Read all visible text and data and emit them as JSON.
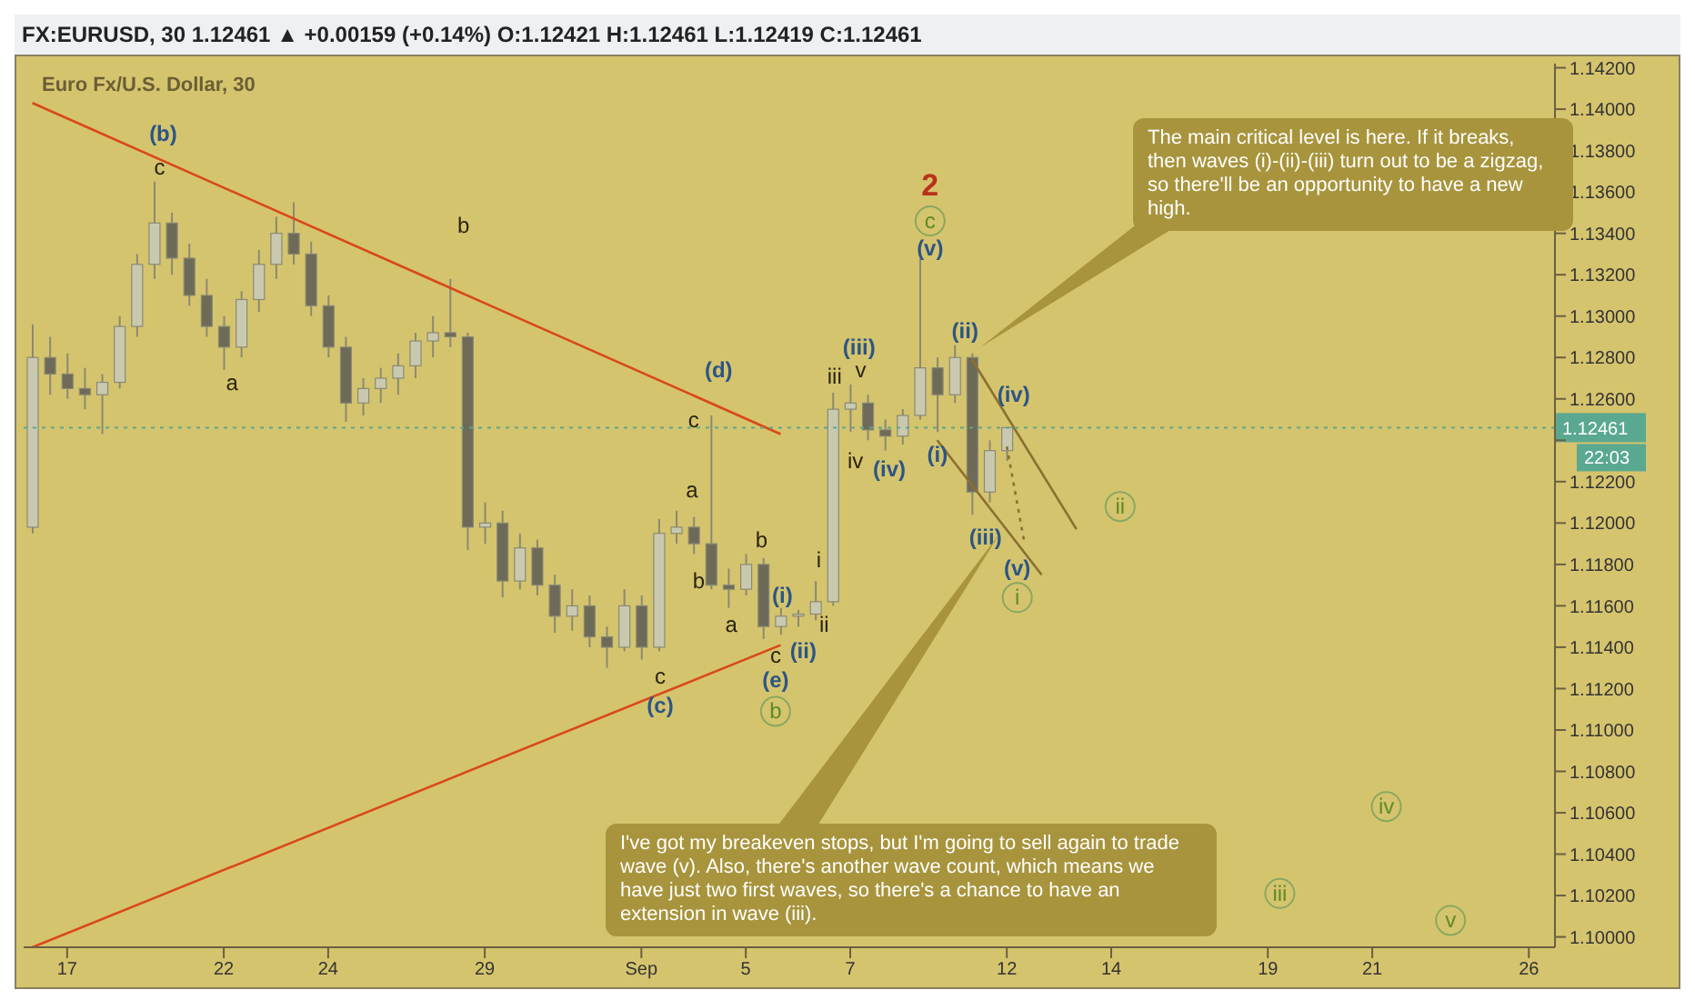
{
  "chart_data": {
    "type": "candlestick",
    "title": "Euro Fx/U.S. Dollar, 30",
    "subtitle": "FX:EURUSD, 30  1.12461 ▲ +0.00159 (+0.14%)  O:1.12421 H:1.12461 L:1.12419 C:1.12461",
    "color": "#8a8a72",
    "categories": [
      null,
      null,
      "17",
      null,
      null,
      null,
      null,
      null,
      null,
      null,
      null,
      "22",
      null,
      null,
      null,
      null,
      null,
      "24",
      null,
      null,
      null,
      null,
      null,
      null,
      null,
      null,
      "29",
      null,
      null,
      null,
      null,
      null,
      null,
      null,
      null,
      "Sep",
      null,
      null,
      null,
      null,
      null,
      "5",
      null,
      null,
      null,
      null,
      null,
      "7",
      null,
      null,
      null,
      null,
      null,
      null,
      null,
      null,
      "12",
      null,
      null,
      null,
      null,
      null,
      "14",
      null,
      null,
      null,
      null,
      null,
      null,
      null,
      null,
      "19",
      null,
      null,
      null,
      null,
      null,
      "21",
      null,
      null,
      null,
      null,
      null,
      null,
      null,
      null,
      "26",
      null
    ],
    "ohlc": [
      [
        1.1198,
        1.1296,
        1.1195,
        1.128
      ],
      [
        1.128,
        1.129,
        1.1262,
        1.1272
      ],
      [
        1.1272,
        1.1282,
        1.126,
        1.1265
      ],
      [
        1.1265,
        1.1275,
        1.1255,
        1.1262
      ],
      [
        1.1262,
        1.1272,
        1.1243,
        1.1268
      ],
      [
        1.1268,
        1.13,
        1.1265,
        1.1295
      ],
      [
        1.1295,
        1.133,
        1.129,
        1.1325
      ],
      [
        1.1325,
        1.1365,
        1.1318,
        1.1345
      ],
      [
        1.1345,
        1.135,
        1.132,
        1.1328
      ],
      [
        1.1328,
        1.1335,
        1.1305,
        1.131
      ],
      [
        1.131,
        1.1318,
        1.129,
        1.1295
      ],
      [
        1.1295,
        1.13,
        1.1274,
        1.1285
      ],
      [
        1.1285,
        1.1312,
        1.128,
        1.1308
      ],
      [
        1.1308,
        1.1332,
        1.1302,
        1.1325
      ],
      [
        1.1325,
        1.1348,
        1.1318,
        1.134
      ],
      [
        1.134,
        1.1355,
        1.1325,
        1.133
      ],
      [
        1.133,
        1.1336,
        1.13,
        1.1305
      ],
      [
        1.1305,
        1.131,
        1.128,
        1.1285
      ],
      [
        1.1285,
        1.129,
        1.1249,
        1.1258
      ],
      [
        1.1258,
        1.127,
        1.1252,
        1.1265
      ],
      [
        1.1265,
        1.1275,
        1.1258,
        1.127
      ],
      [
        1.127,
        1.1282,
        1.1262,
        1.1276
      ],
      [
        1.1276,
        1.1292,
        1.127,
        1.1288
      ],
      [
        1.1288,
        1.13,
        1.128,
        1.1292
      ],
      [
        1.1292,
        1.1318,
        1.1285,
        1.129
      ],
      [
        1.129,
        1.1292,
        1.1187,
        1.1198
      ],
      [
        1.1198,
        1.121,
        1.119,
        1.12
      ],
      [
        1.12,
        1.1206,
        1.1164,
        1.1172
      ],
      [
        1.1172,
        1.1195,
        1.1168,
        1.1188
      ],
      [
        1.1188,
        1.1192,
        1.1165,
        1.117
      ],
      [
        1.117,
        1.1175,
        1.1147,
        1.1155
      ],
      [
        1.1155,
        1.1168,
        1.1148,
        1.116
      ],
      [
        1.116,
        1.1165,
        1.114,
        1.1145
      ],
      [
        1.1145,
        1.115,
        1.113,
        1.114
      ],
      [
        1.114,
        1.1168,
        1.1138,
        1.116
      ],
      [
        1.116,
        1.1165,
        1.1134,
        1.114
      ],
      [
        1.114,
        1.1202,
        1.1138,
        1.1195
      ],
      [
        1.1195,
        1.1206,
        1.119,
        1.1198
      ],
      [
        1.1198,
        1.1203,
        1.1185,
        1.119
      ],
      [
        1.119,
        1.1252,
        1.1168,
        1.117
      ],
      [
        1.117,
        1.1178,
        1.1159,
        1.1168
      ],
      [
        1.1168,
        1.1185,
        1.1165,
        1.118
      ],
      [
        1.118,
        1.1183,
        1.1144,
        1.115
      ],
      [
        1.115,
        1.1159,
        1.1146,
        1.1155
      ],
      [
        1.1155,
        1.1158,
        1.115,
        1.1156
      ],
      [
        1.1156,
        1.1172,
        1.1153,
        1.1162
      ],
      [
        1.1162,
        1.1263,
        1.116,
        1.1255
      ],
      [
        1.1255,
        1.1267,
        1.1244,
        1.1258
      ],
      [
        1.1258,
        1.1262,
        1.124,
        1.1245
      ],
      [
        1.1245,
        1.125,
        1.1235,
        1.1242
      ],
      [
        1.1242,
        1.1255,
        1.1238,
        1.1252
      ],
      [
        1.1252,
        1.1328,
        1.125,
        1.1275
      ],
      [
        1.1275,
        1.128,
        1.1244,
        1.1262
      ],
      [
        1.1262,
        1.1286,
        1.1258,
        1.128
      ],
      [
        1.128,
        1.1282,
        1.1204,
        1.1215
      ],
      [
        1.1215,
        1.124,
        1.121,
        1.1235
      ],
      [
        1.1235,
        1.12461,
        1.123,
        1.12461
      ],
      null,
      null,
      null,
      null,
      null,
      null,
      null,
      null,
      null,
      null,
      null,
      null,
      null,
      null,
      null,
      null,
      null,
      null,
      null,
      null,
      null,
      null,
      null,
      null,
      null,
      null,
      null,
      null,
      null,
      null,
      null
    ],
    "series": [
      {
        "type": "line",
        "color": "#d9481a",
        "values": [
          1.1403,
          null,
          null,
          null,
          null,
          null,
          null,
          null,
          null,
          null,
          null,
          null,
          null,
          null,
          null,
          null,
          null,
          null,
          null,
          null,
          null,
          null,
          null,
          null,
          null,
          null,
          null,
          null,
          null,
          null,
          null,
          null,
          null,
          null,
          null,
          null,
          null,
          null,
          null,
          null,
          null,
          null,
          null,
          1.1243,
          null,
          null,
          null,
          null,
          null,
          null,
          null,
          null,
          null,
          null,
          null,
          null,
          null,
          null,
          null,
          null,
          null,
          null,
          null,
          null,
          null,
          null,
          null,
          null,
          null,
          null,
          null,
          null,
          null,
          null,
          null,
          null,
          null,
          null,
          null,
          null,
          null,
          null,
          null,
          null,
          null,
          null,
          null,
          null
        ]
      },
      {
        "type": "line",
        "color": "#d9481a",
        "values": [
          1.0995,
          null,
          null,
          null,
          null,
          null,
          null,
          null,
          null,
          null,
          null,
          null,
          null,
          null,
          null,
          null,
          null,
          null,
          null,
          null,
          null,
          null,
          null,
          null,
          null,
          null,
          null,
          null,
          null,
          null,
          null,
          null,
          null,
          null,
          null,
          null,
          null,
          null,
          null,
          null,
          null,
          null,
          null,
          1.1141,
          null,
          null,
          null,
          null,
          null,
          null,
          null,
          null,
          null,
          null,
          null,
          null,
          null,
          null,
          null,
          null,
          null,
          null,
          null,
          null,
          null,
          null,
          null,
          null,
          null,
          null,
          null,
          null,
          null,
          null,
          null,
          null,
          null,
          null,
          null,
          null,
          null,
          null,
          null,
          null,
          null,
          null,
          null,
          null
        ]
      },
      {
        "type": "line",
        "color": "#8a7030",
        "values": [
          null,
          null,
          null,
          null,
          null,
          null,
          null,
          null,
          null,
          null,
          null,
          null,
          null,
          null,
          null,
          null,
          null,
          null,
          null,
          null,
          null,
          null,
          null,
          null,
          null,
          null,
          null,
          null,
          null,
          null,
          null,
          null,
          null,
          null,
          null,
          null,
          null,
          null,
          null,
          null,
          null,
          null,
          null,
          null,
          null,
          null,
          null,
          null,
          null,
          null,
          null,
          null,
          1.124,
          null,
          null,
          null,
          null,
          null,
          1.1175,
          null,
          null,
          null,
          null,
          null,
          null,
          null,
          null,
          null,
          null,
          null,
          null,
          null,
          null,
          null,
          null,
          null,
          null,
          null,
          null,
          null,
          null,
          null,
          null,
          null,
          null,
          null,
          null,
          null
        ]
      },
      {
        "type": "line",
        "color": "#8a7030",
        "values": [
          null,
          null,
          null,
          null,
          null,
          null,
          null,
          null,
          null,
          null,
          null,
          null,
          null,
          null,
          null,
          null,
          null,
          null,
          null,
          null,
          null,
          null,
          null,
          null,
          null,
          null,
          null,
          null,
          null,
          null,
          null,
          null,
          null,
          null,
          null,
          null,
          null,
          null,
          null,
          null,
          null,
          null,
          null,
          null,
          null,
          null,
          null,
          null,
          null,
          null,
          null,
          null,
          null,
          null,
          1.1279,
          null,
          null,
          null,
          null,
          null,
          1.1197,
          null,
          null,
          null,
          null,
          null,
          null,
          null,
          null,
          null,
          null,
          null,
          null,
          null,
          null,
          null,
          null,
          null,
          null,
          null,
          null,
          null,
          null,
          null,
          null,
          null,
          null,
          null
        ]
      },
      {
        "type": "line",
        "color": "#8a7030",
        "line_style": "dotted",
        "values": [
          null,
          null,
          null,
          null,
          null,
          null,
          null,
          null,
          null,
          null,
          null,
          null,
          null,
          null,
          null,
          null,
          null,
          null,
          null,
          null,
          null,
          null,
          null,
          null,
          null,
          null,
          null,
          null,
          null,
          null,
          null,
          null,
          null,
          null,
          null,
          null,
          null,
          null,
          null,
          null,
          null,
          null,
          null,
          null,
          null,
          null,
          null,
          null,
          null,
          null,
          null,
          null,
          null,
          null,
          null,
          null,
          1.1237,
          1.1191,
          null,
          null,
          null,
          null,
          null,
          null,
          null,
          null,
          null,
          null,
          null,
          null,
          null,
          null,
          null,
          null,
          null,
          null,
          null,
          null,
          null,
          null,
          null,
          null,
          null,
          null,
          null,
          null,
          null,
          null
        ]
      }
    ],
    "ylim": [
      1.0995,
      1.1422
    ],
    "yticks": [
      {
        "value": 1.1,
        "label": "1.10000"
      },
      {
        "value": 1.102,
        "label": "1.10200"
      },
      {
        "value": 1.104,
        "label": "1.10400"
      },
      {
        "value": 1.106,
        "label": "1.10600"
      },
      {
        "value": 1.108,
        "label": "1.10800"
      },
      {
        "value": 1.11,
        "label": "1.11000"
      },
      {
        "value": 1.112,
        "label": "1.11200"
      },
      {
        "value": 1.114,
        "label": "1.11400"
      },
      {
        "value": 1.116,
        "label": "1.11600"
      },
      {
        "value": 1.118,
        "label": "1.11800"
      },
      {
        "value": 1.12,
        "label": "1.12000"
      },
      {
        "value": 1.122,
        "label": "1.12200"
      },
      {
        "value": 1.124,
        "label": null
      },
      {
        "value": 1.126,
        "label": "1.12600"
      },
      {
        "value": 1.128,
        "label": "1.12800"
      },
      {
        "value": 1.13,
        "label": "1.13000"
      },
      {
        "value": 1.132,
        "label": "1.13200"
      },
      {
        "value": 1.134,
        "label": "1.13400"
      },
      {
        "value": 1.136,
        "label": "1.13600"
      },
      {
        "value": 1.138,
        "label": "1.13800"
      },
      {
        "value": 1.14,
        "label": "1.14000"
      },
      {
        "value": 1.142,
        "label": "1.14200"
      }
    ],
    "ref_lines": [
      {
        "axis": "y",
        "value": 1.12461,
        "label": "1.12461",
        "color": "#5aa890",
        "line_style": "dotted"
      }
    ],
    "annotations": [
      "(b)",
      "c",
      "a",
      "b",
      "(d)",
      "c",
      "a",
      "b",
      "a",
      "b",
      "c",
      "(e)",
      "b",
      "c",
      "(c)",
      "(i)",
      "(ii)",
      "i",
      "ii",
      "iii",
      "v",
      "(iii)",
      "iv",
      "(iv)",
      "(v)",
      "c",
      "2",
      "(i)",
      "(ii)",
      "(iii)",
      "(iv)",
      "(v)",
      "i",
      "ii",
      "iii",
      "iv",
      "v",
      "The main critical level is here. If it breaks, then waves (i)-(ii)-(iii) turn out to be a zigzag, so there'll be an opportunity to have a new high.",
      "I've got my breakeven stops, but I'm going to sell again to trade wave (v). Also, there's another wave count, which means we have just two first waves, so there's a chance to have an extension in wave (iii).",
      "22:03"
    ]
  }
}
